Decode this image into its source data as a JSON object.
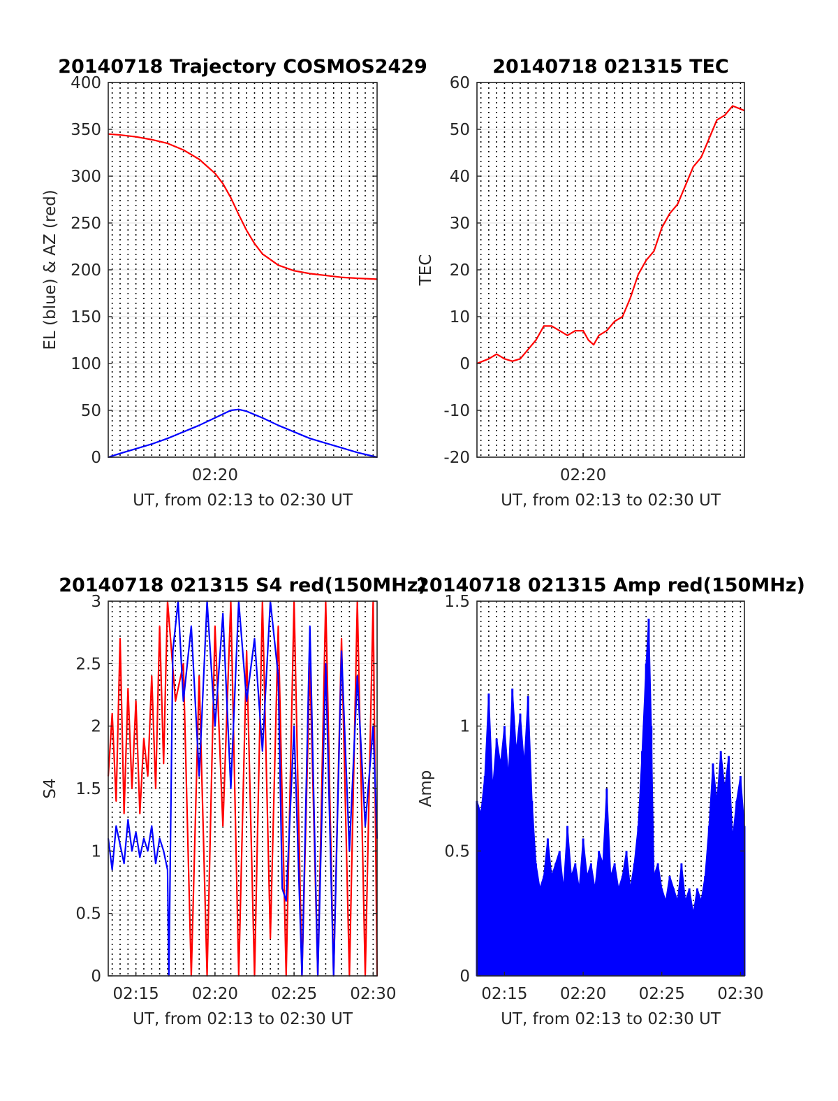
{
  "chart_data": [
    {
      "type": "line",
      "title": "20140718 Trajectory COSMOS2429",
      "xlabel": "UT, from 02:13 to 02:30 UT",
      "ylabel": "EL (blue) & AZ (red)",
      "xlim": [
        "02:13:15",
        "02:30:15"
      ],
      "ylim": [
        0,
        400
      ],
      "yticks": [
        0,
        50,
        100,
        150,
        200,
        250,
        300,
        350,
        400
      ],
      "xticks": [
        {
          "t": "02:20:00",
          "label": "02:20"
        }
      ],
      "grid": true,
      "series": [
        {
          "color": "#ff0000",
          "x": [
            "02:13:15",
            "02:14:00",
            "02:15:00",
            "02:16:00",
            "02:17:00",
            "02:18:00",
            "02:19:00",
            "02:20:00",
            "02:20:30",
            "02:21:00",
            "02:21:30",
            "02:22:00",
            "02:22:30",
            "02:23:00",
            "02:24:00",
            "02:25:00",
            "02:26:00",
            "02:27:00",
            "02:28:00",
            "02:29:00",
            "02:30:15"
          ],
          "y": [
            345,
            344,
            342,
            339,
            335,
            328,
            318,
            303,
            292,
            277,
            259,
            242,
            228,
            217,
            205,
            199,
            196,
            194,
            192,
            191,
            190
          ]
        },
        {
          "color": "#0000ff",
          "x": [
            "02:13:15",
            "02:14:00",
            "02:15:00",
            "02:16:00",
            "02:17:00",
            "02:18:00",
            "02:19:00",
            "02:20:00",
            "02:21:00",
            "02:21:30",
            "02:22:00",
            "02:23:00",
            "02:24:00",
            "02:25:00",
            "02:26:00",
            "02:27:00",
            "02:28:00",
            "02:29:00",
            "02:30:15"
          ],
          "y": [
            0,
            4,
            9,
            14,
            20,
            27,
            34,
            42,
            50,
            51,
            49,
            42,
            34,
            27,
            20,
            15,
            10,
            5,
            0
          ]
        }
      ]
    },
    {
      "type": "line",
      "title": "20140718 021315 TEC",
      "xlabel": "UT, from 02:13 to 02:30 UT",
      "ylabel": "TEC",
      "xlim": [
        "02:13:15",
        "02:30:15"
      ],
      "ylim": [
        -20,
        60
      ],
      "yticks": [
        -20,
        -10,
        0,
        10,
        20,
        30,
        40,
        50,
        60
      ],
      "xticks": [
        {
          "t": "02:20:00",
          "label": "02:20"
        }
      ],
      "grid": true,
      "series": [
        {
          "color": "#ff0000",
          "x": [
            "02:13:15",
            "02:14:00",
            "02:14:30",
            "02:15:00",
            "02:15:30",
            "02:16:00",
            "02:16:30",
            "02:17:00",
            "02:17:30",
            "02:18:00",
            "02:18:30",
            "02:19:00",
            "02:19:30",
            "02:20:00",
            "02:20:20",
            "02:20:40",
            "02:21:00",
            "02:21:30",
            "02:22:00",
            "02:22:30",
            "02:23:00",
            "02:23:30",
            "02:24:00",
            "02:24:30",
            "02:25:00",
            "02:25:30",
            "02:26:00",
            "02:26:30",
            "02:27:00",
            "02:27:30",
            "02:28:00",
            "02:28:30",
            "02:29:00",
            "02:29:30",
            "02:30:15"
          ],
          "y": [
            0,
            1,
            2,
            1,
            0.5,
            1,
            3,
            5,
            8,
            8,
            7,
            6,
            7,
            7,
            5,
            4,
            6,
            7,
            9,
            10,
            14,
            19,
            22,
            24,
            29,
            32,
            34,
            38,
            42,
            44,
            48,
            52,
            53,
            55,
            54
          ]
        }
      ]
    },
    {
      "type": "line",
      "title": "20140718 021315 S4 red(150MHz)",
      "xlabel": "UT, from 02:13 to 02:30 UT",
      "ylabel": "S4",
      "xlim": [
        "02:13:15",
        "02:30:15"
      ],
      "ylim": [
        0,
        3
      ],
      "yticks": [
        0,
        0.5,
        1,
        1.5,
        2,
        2.5,
        3
      ],
      "xticks": [
        {
          "t": "02:15:00",
          "label": "02:15"
        },
        {
          "t": "02:20:00",
          "label": "02:20"
        },
        {
          "t": "02:25:00",
          "label": "02:25"
        },
        {
          "t": "02:30:00",
          "label": "02:30"
        }
      ],
      "grid": true,
      "series": [
        {
          "color": "#ff0000",
          "x": [
            "02:13:15",
            "02:13:30",
            "02:13:45",
            "02:14:00",
            "02:14:15",
            "02:14:30",
            "02:14:45",
            "02:15:00",
            "02:15:15",
            "02:15:30",
            "02:15:45",
            "02:16:00",
            "02:16:15",
            "02:16:30",
            "02:16:45",
            "02:17:00",
            "02:17:30",
            "02:18:00",
            "02:18:30",
            "02:19:00",
            "02:19:30",
            "02:20:00",
            "02:20:30",
            "02:21:00",
            "02:21:30",
            "02:22:00",
            "02:22:30",
            "02:23:00",
            "02:23:30",
            "02:24:00",
            "02:24:30",
            "02:25:00",
            "02:25:30",
            "02:26:00",
            "02:26:30",
            "02:27:00",
            "02:27:30",
            "02:28:00",
            "02:28:30",
            "02:29:00",
            "02:29:30",
            "02:30:00",
            "02:30:15"
          ],
          "y": [
            1.6,
            2.1,
            1.4,
            2.7,
            1.3,
            2.3,
            1.5,
            2.2,
            1.3,
            1.9,
            1.6,
            2.4,
            1.5,
            2.8,
            1.7,
            3.0,
            2.2,
            2.5,
            0,
            2.4,
            0,
            2.8,
            1.2,
            3.0,
            0,
            2.6,
            0,
            3.0,
            0.3,
            2.8,
            0,
            3.0,
            0,
            2.5,
            0,
            3.0,
            0,
            2.7,
            0,
            3.0,
            0,
            3.0,
            0
          ]
        },
        {
          "color": "#0000ff",
          "x": [
            "02:13:15",
            "02:13:30",
            "02:13:45",
            "02:14:00",
            "02:14:15",
            "02:14:30",
            "02:14:45",
            "02:15:00",
            "02:15:15",
            "02:15:30",
            "02:15:45",
            "02:16:00",
            "02:16:15",
            "02:16:30",
            "02:16:45",
            "02:17:00",
            "02:17:05",
            "02:17:20",
            "02:17:40",
            "02:18:00",
            "02:18:30",
            "02:19:00",
            "02:19:30",
            "02:20:00",
            "02:20:30",
            "02:21:00",
            "02:21:30",
            "02:22:00",
            "02:22:30",
            "02:23:00",
            "02:23:30",
            "02:24:00",
            "02:24:15",
            "02:24:30",
            "02:25:00",
            "02:25:30",
            "02:26:00",
            "02:26:30",
            "02:27:00",
            "02:27:30",
            "02:28:00",
            "02:28:30",
            "02:29:00",
            "02:29:30",
            "02:30:00",
            "02:30:15"
          ],
          "y": [
            1.1,
            0.85,
            1.2,
            1.05,
            0.9,
            1.25,
            1.0,
            1.15,
            0.95,
            1.1,
            1.0,
            1.2,
            0.9,
            1.1,
            1.0,
            0.85,
            0,
            2.6,
            3.0,
            2.2,
            2.8,
            1.6,
            3.0,
            2.0,
            2.9,
            1.5,
            3.0,
            2.2,
            2.7,
            1.8,
            3.0,
            2.4,
            0.7,
            0.6,
            2.0,
            0,
            2.8,
            0,
            2.5,
            0,
            2.6,
            1.0,
            2.4,
            1.2,
            2.0,
            1.1
          ]
        }
      ]
    },
    {
      "type": "bar",
      "title": "20140718 021315 Amp red(150MHz)",
      "xlabel": "UT, from 02:13 to 02:30 UT",
      "ylabel": "Amp",
      "xlim": [
        "02:13:15",
        "02:30:15"
      ],
      "ylim": [
        0,
        1.5
      ],
      "yticks": [
        0,
        0.5,
        1,
        1.5
      ],
      "xticks": [
        {
          "t": "02:15:00",
          "label": "02:15"
        },
        {
          "t": "02:20:00",
          "label": "02:20"
        },
        {
          "t": "02:25:00",
          "label": "02:25"
        },
        {
          "t": "02:30:00",
          "label": "02:30"
        }
      ],
      "grid": true,
      "series": [
        {
          "color": "#0000ff",
          "x": [
            "02:13:15",
            "02:13:30",
            "02:13:45",
            "02:14:00",
            "02:14:15",
            "02:14:30",
            "02:14:45",
            "02:15:00",
            "02:15:15",
            "02:15:30",
            "02:15:45",
            "02:16:00",
            "02:16:15",
            "02:16:30",
            "02:16:45",
            "02:17:00",
            "02:17:15",
            "02:17:30",
            "02:17:45",
            "02:18:00",
            "02:18:15",
            "02:18:30",
            "02:18:45",
            "02:19:00",
            "02:19:15",
            "02:19:30",
            "02:19:45",
            "02:20:00",
            "02:20:15",
            "02:20:30",
            "02:20:45",
            "02:21:00",
            "02:21:15",
            "02:21:30",
            "02:21:45",
            "02:22:00",
            "02:22:15",
            "02:22:30",
            "02:22:45",
            "02:23:00",
            "02:23:15",
            "02:23:30",
            "02:23:45",
            "02:24:00",
            "02:24:10",
            "02:24:20",
            "02:24:30",
            "02:24:45",
            "02:25:00",
            "02:25:15",
            "02:25:30",
            "02:25:45",
            "02:26:00",
            "02:26:15",
            "02:26:30",
            "02:26:45",
            "02:27:00",
            "02:27:15",
            "02:27:30",
            "02:27:45",
            "02:28:00",
            "02:28:15",
            "02:28:30",
            "02:28:45",
            "02:29:00",
            "02:29:15",
            "02:29:30",
            "02:29:45",
            "02:30:00",
            "02:30:15"
          ],
          "y": [
            0.7,
            0.65,
            0.8,
            1.13,
            0.75,
            0.95,
            0.85,
            1.0,
            0.8,
            1.15,
            0.9,
            1.05,
            0.85,
            1.12,
            0.7,
            0.45,
            0.35,
            0.4,
            0.55,
            0.4,
            0.45,
            0.5,
            0.35,
            0.6,
            0.4,
            0.45,
            0.35,
            0.55,
            0.4,
            0.45,
            0.35,
            0.5,
            0.45,
            0.75,
            0.4,
            0.45,
            0.35,
            0.4,
            0.5,
            0.35,
            0.45,
            0.6,
            0.9,
            1.25,
            1.43,
            1.0,
            0.4,
            0.45,
            0.35,
            0.3,
            0.4,
            0.35,
            0.3,
            0.45,
            0.3,
            0.35,
            0.25,
            0.35,
            0.3,
            0.4,
            0.6,
            0.85,
            0.7,
            0.9,
            0.75,
            0.88,
            0.55,
            0.7,
            0.8,
            0.6
          ]
        }
      ]
    }
  ]
}
